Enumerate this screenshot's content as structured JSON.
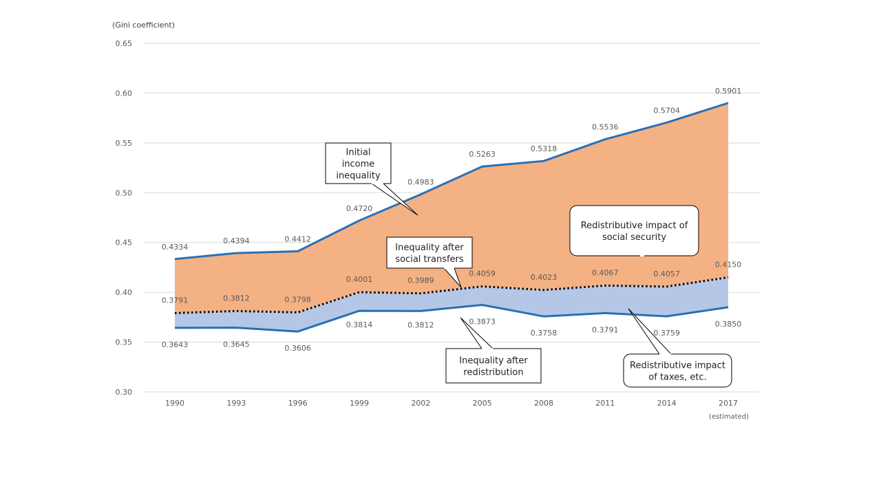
{
  "chart_data": {
    "type": "area",
    "ylabel": "(Gini coefficient)",
    "ylim": [
      0.3,
      0.65
    ],
    "yticks": [
      "0.30",
      "0.35",
      "0.40",
      "0.45",
      "0.50",
      "0.55",
      "0.60",
      "0.65"
    ],
    "ytick_values": [
      0.3,
      0.35,
      0.4,
      0.45,
      0.5,
      0.55,
      0.6,
      0.65
    ],
    "categories": [
      "1990",
      "1993",
      "1996",
      "1999",
      "2002",
      "2005",
      "2008",
      "2011",
      "2014",
      "2017"
    ],
    "category_note": "(estimated)",
    "grid": true,
    "series": [
      {
        "key": "initial",
        "values": [
          0.4334,
          0.4394,
          0.4412,
          0.472,
          0.4983,
          0.5263,
          0.5318,
          0.5536,
          0.5704,
          0.5901
        ],
        "labels": [
          "0.4334",
          "0.4394",
          "0.4412",
          "0.4720",
          "0.4983",
          "0.5263",
          "0.5318",
          "0.5536",
          "0.5704",
          "0.5901"
        ],
        "color": "#2a6fb5"
      },
      {
        "key": "social",
        "values": [
          0.3791,
          0.3812,
          0.3798,
          0.4001,
          0.3989,
          0.4059,
          0.4023,
          0.4067,
          0.4057,
          0.415
        ],
        "labels": [
          "0.3791",
          "0.3812",
          "0.3798",
          "0.4001",
          "0.3989",
          "0.4059",
          "0.4023",
          "0.4067",
          "0.4057",
          "0.4150"
        ],
        "color": "#000000"
      },
      {
        "key": "redist",
        "values": [
          0.3643,
          0.3645,
          0.3606,
          0.3814,
          0.3812,
          0.3873,
          0.3758,
          0.3791,
          0.3759,
          0.385
        ],
        "labels": [
          "0.3643",
          "0.3645",
          "0.3606",
          "0.3814",
          "0.3812",
          "0.3873",
          "0.3758",
          "0.3791",
          "0.3759",
          "0.3850"
        ],
        "color": "#2a6fb5"
      }
    ],
    "fills": {
      "social_security": "#f4b183",
      "taxes": "#b4c7e7"
    },
    "annotations": {
      "initial": [
        "Initial",
        "income",
        "inequality"
      ],
      "social_transfers": [
        "Inequality after",
        "social transfers"
      ],
      "redistribution": [
        "Inequality after",
        "redistribution"
      ],
      "social_security_impact": [
        "Redistributive impact of",
        "social security"
      ],
      "taxes_impact": [
        "Redistributive impact",
        "of taxes, etc."
      ]
    }
  }
}
